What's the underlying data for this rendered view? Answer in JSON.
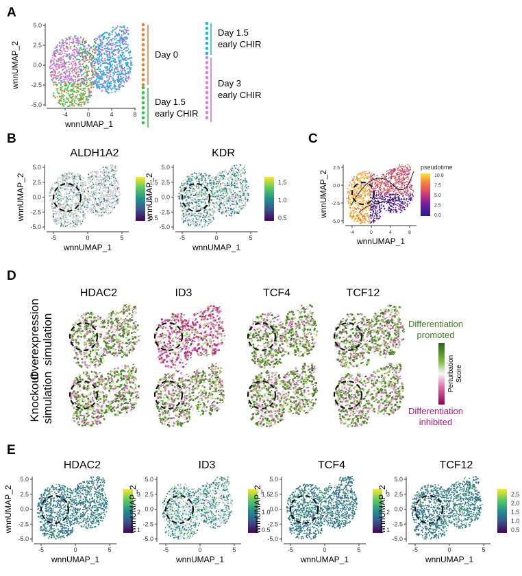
{
  "panels": {
    "A": {
      "label": "A",
      "xlabel": "wnnUMAP_1",
      "ylabel": "wnnUMAP_2",
      "xticks": [
        "-4",
        "0",
        "4",
        "8"
      ],
      "yticks": [
        "5.0",
        "2.5",
        "0.0",
        "-2.5",
        "-5.0"
      ],
      "legend_groups": [
        {
          "text_line1": "Day 0",
          "text_line2": "",
          "dot_color": "#e8823a",
          "bar_color": "#e07a2a"
        },
        {
          "text_line1": "Day 1.5",
          "text_line2": "early CHIR",
          "dot_color": "#37c24a",
          "bar_color": "#2fbf53"
        },
        {
          "text_line1": "Day 1.5",
          "text_line2": "early CHIR",
          "dot_color": "#18b7d6",
          "bar_color": "#1fb3d8"
        },
        {
          "text_line1": "Day 3",
          "text_line2": "early CHIR",
          "dot_color": "#d97fdd",
          "bar_color": "#c86bcc"
        }
      ]
    },
    "B": {
      "label": "B",
      "plots": [
        {
          "title": "ALDH1A2",
          "cbar_ticks": [
            "1.5",
            "1.0",
            "0.5"
          ]
        },
        {
          "title": "KDR",
          "cbar_ticks": [
            "1.5",
            "1.0",
            "0.5"
          ]
        }
      ],
      "xlabel": "wnnUMAP_1",
      "ylabel": "wnnUMAP_2",
      "xticks": [
        "-5",
        "0",
        "5"
      ],
      "yticks": [
        "5.0",
        "2.5",
        "0.0",
        "-2.5",
        "-5.0"
      ]
    },
    "C": {
      "label": "C",
      "legend_title": "pseudotime",
      "cbar_ticks": [
        "10.0",
        "7.5",
        "5.0",
        "2.5",
        "0.0"
      ],
      "xlabel": "wnnUMAP_1",
      "ylabel": "wnnUMAP_2",
      "xticks": [
        "-4",
        "0",
        "4",
        "8"
      ],
      "yticks": [
        "2.5",
        "0.0",
        "-2.5",
        "-5.0"
      ]
    },
    "D": {
      "label": "D",
      "genes": [
        "HDAC2",
        "ID3",
        "TCF4",
        "TCF12"
      ],
      "rows": [
        {
          "line1": "Overexpression",
          "line2": "simulation"
        },
        {
          "line1": "Knockout",
          "line2": "simulation"
        }
      ],
      "legend_top_line1": "Differentiation",
      "legend_top_line2": "promoted",
      "legend_bottom_line1": "Differentiation",
      "legend_bottom_line2": "inhibited",
      "score_line1": "Perturbation",
      "score_line2": "Score",
      "colors": {
        "promoted": "#3d7a1f",
        "inhibited": "#b0186f"
      }
    },
    "E": {
      "label": "E",
      "plots": [
        {
          "title": "HDAC2",
          "cbar_ticks": [
            "3",
            "2",
            "1"
          ]
        },
        {
          "title": "ID3",
          "cbar_ticks": [
            "1.5",
            "1.0",
            "0.5"
          ]
        },
        {
          "title": "TCF4",
          "cbar_ticks": [
            "3",
            "2",
            "1"
          ]
        },
        {
          "title": "TCF12",
          "cbar_ticks": [
            "2.5",
            "2.0",
            "1.5",
            "1.0",
            "0.5"
          ]
        }
      ],
      "xlabel": "wnnUMAP_1",
      "ylabel": "wnnUMAP_2",
      "xticks": [
        "-5",
        "0",
        "5"
      ],
      "yticks": [
        "5.0",
        "2.5",
        "0.0",
        "-2.5",
        "-5.0"
      ]
    }
  }
}
